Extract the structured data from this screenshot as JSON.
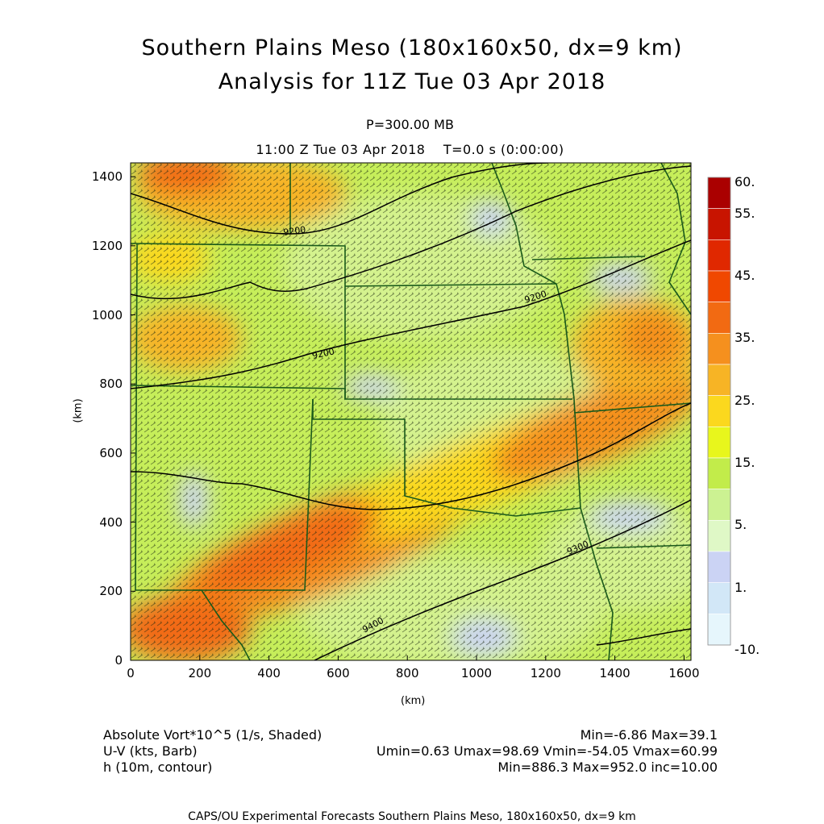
{
  "title_line1": "Southern Plains Meso (180x160x50, dx=9 km)",
  "title_line2": "Analysis for 11Z Tue 03 Apr 2018",
  "level": "P=300.00 MB",
  "valid_time": "11:00 Z Tue 03 Apr 2018",
  "model_time": "T=0.0 s (0:00:00)",
  "x_axis": {
    "label": "(km)",
    "ticks": [
      "0",
      "200",
      "400",
      "600",
      "800",
      "1000",
      "1200",
      "1400",
      "1600"
    ],
    "range": [
      0,
      1620
    ]
  },
  "y_axis": {
    "label": "(km)",
    "ticks": [
      "0",
      "200",
      "400",
      "600",
      "800",
      "1000",
      "1200",
      "1400"
    ],
    "range": [
      0,
      1440
    ]
  },
  "colorbar": {
    "labels": [
      "60.",
      "55.",
      "45.",
      "35.",
      "25.",
      "15.",
      "5.",
      "1.",
      "-10."
    ],
    "colors": [
      "#aa0000",
      "#c81400",
      "#e02800",
      "#f04800",
      "#f26a12",
      "#f5901e",
      "#f7b425",
      "#fbd81e",
      "#e8f61c",
      "#c2ec4a",
      "#ccf292",
      "#dff8c6",
      "#cbd3f4",
      "#d2e7f7",
      "#e6f6fc"
    ]
  },
  "contour_labels": [
    "9400",
    "9300",
    "9200",
    "9200",
    "9200"
  ],
  "footer": {
    "field1": "Absolute Vort*10^5 (1/s, Shaded)",
    "field1_stats": "Min=-6.86 Max=39.1",
    "field2": "U-V (kts, Barb)",
    "field2_stats": "Umin=0.63 Umax=98.69 Vmin=-54.05 Vmax=60.99",
    "field3": "h (10m, contour)",
    "field3_stats": "Min=886.3 Max=952.0 inc=10.00",
    "credit": "CAPS/OU Experimental Forecasts  Southern Plains Meso, 180x160x50, dx=9 km"
  },
  "colors": {
    "state_border": "#1a5a1a",
    "contour": "#000000",
    "barb": "#000000"
  }
}
